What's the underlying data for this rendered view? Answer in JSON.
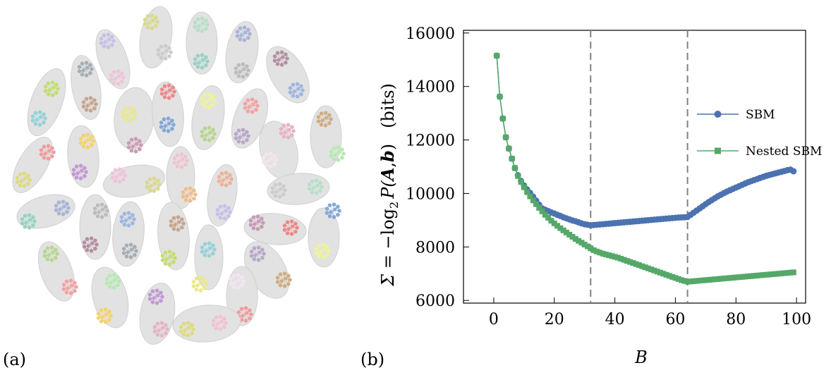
{
  "panel_labels": {
    "a": "(a)",
    "b": "(b)"
  },
  "network": {
    "group_fill": "#e2e2e2",
    "group_stroke": "#d0d0d0",
    "palette": [
      "#c7c0e6",
      "#f0c4d8",
      "#d9d98c",
      "#cccccc",
      "#b6e0c8",
      "#96d2c4",
      "#a8b4d8",
      "#bcbcbc",
      "#b58fa3",
      "#9fb7dc",
      "#a6adb5",
      "#c7a58e",
      "#c4dd70",
      "#96d1d8",
      "#e9e98a",
      "#c99bb5",
      "#ec8a8a",
      "#85a8d8",
      "#eff29a",
      "#b6d690",
      "#f2a3a3",
      "#b8a8c8",
      "#cfae84",
      "#b5eab0",
      "#f5d36a",
      "#c29ad3",
      "#e6b3c6",
      "#f3e5f0",
      "#ef9d9d",
      "#dcdb80",
      "#f2c3cf",
      "#f2bc8a",
      "#ecb29a"
    ],
    "group_count": 33,
    "cluster_count": 66
  },
  "chart_data": {
    "type": "line",
    "title": "",
    "xlabel": "B",
    "ylabel_sigma": "Σ = −",
    "ylabel_log": "log",
    "ylabel_sub": "2",
    "ylabel_P": "P(",
    "ylabel_A": "A",
    "ylabel_comma": ",",
    "ylabel_b": "b",
    "ylabel_close": ")",
    "ylabel_unit": "(bits)",
    "xlim": [
      -10,
      103
    ],
    "ylim": [
      5900,
      16100
    ],
    "xticks": [
      0,
      20,
      40,
      60,
      80,
      100
    ],
    "yticks": [
      6000,
      8000,
      10000,
      12000,
      14000,
      16000
    ],
    "xtick_labels": [
      "0",
      "20",
      "40",
      "60",
      "80",
      "100"
    ],
    "ytick_labels": [
      "6000",
      "8000",
      "10000",
      "12000",
      "14000",
      "16000"
    ],
    "vlines": [
      32,
      64
    ],
    "legend": {
      "position": "right",
      "entries": [
        "SBM",
        "Nested SBM"
      ]
    },
    "series": [
      {
        "name": "SBM",
        "color": "#4c72b0",
        "marker": "circle",
        "x": [
          1,
          2,
          3,
          4,
          5,
          6,
          7,
          8,
          9,
          10,
          11,
          12,
          13,
          14,
          15,
          16,
          17,
          18,
          19,
          20,
          21,
          22,
          23,
          24,
          25,
          26,
          27,
          28,
          29,
          30,
          31,
          32,
          33,
          34,
          35,
          36,
          37,
          38,
          39,
          40,
          41,
          42,
          43,
          44,
          45,
          46,
          47,
          48,
          49,
          50,
          51,
          52,
          53,
          54,
          55,
          56,
          57,
          58,
          59,
          60,
          61,
          62,
          63,
          64,
          65,
          66,
          67,
          68,
          69,
          70,
          71,
          72,
          73,
          74,
          75,
          76,
          77,
          78,
          79,
          80,
          81,
          82,
          83,
          84,
          85,
          86,
          87,
          88,
          89,
          90,
          91,
          92,
          93,
          94,
          95,
          96,
          97,
          98,
          99
        ],
        "y": [
          15150,
          13620,
          12800,
          12100,
          11680,
          11300,
          10950,
          10680,
          10470,
          10300,
          10150,
          10020,
          9880,
          9730,
          9580,
          9440,
          9390,
          9340,
          9290,
          9250,
          9200,
          9160,
          9110,
          9070,
          9030,
          8990,
          8960,
          8920,
          8880,
          8850,
          8830,
          8810,
          8820,
          8830,
          8840,
          8850,
          8860,
          8870,
          8880,
          8890,
          8900,
          8910,
          8920,
          8930,
          8940,
          8950,
          8960,
          8970,
          8980,
          8990,
          9000,
          9010,
          9020,
          9030,
          9040,
          9050,
          9060,
          9070,
          9080,
          9090,
          9100,
          9105,
          9110,
          9120,
          9200,
          9280,
          9360,
          9440,
          9520,
          9600,
          9680,
          9750,
          9820,
          9890,
          9950,
          10010,
          10070,
          10120,
          10170,
          10220,
          10270,
          10320,
          10370,
          10420,
          10460,
          10500,
          10540,
          10580,
          10620,
          10660,
          10690,
          10720,
          10750,
          10780,
          10810,
          10840,
          10870,
          10890,
          10830
        ]
      },
      {
        "name": "Nested SBM",
        "color": "#55a868",
        "marker": "square",
        "x": [
          1,
          2,
          3,
          4,
          5,
          6,
          7,
          8,
          9,
          10,
          11,
          12,
          13,
          14,
          15,
          16,
          17,
          18,
          19,
          20,
          21,
          22,
          23,
          24,
          25,
          26,
          27,
          28,
          29,
          30,
          31,
          32,
          33,
          34,
          35,
          36,
          37,
          38,
          39,
          40,
          41,
          42,
          43,
          44,
          45,
          46,
          47,
          48,
          49,
          50,
          51,
          52,
          53,
          54,
          55,
          56,
          57,
          58,
          59,
          60,
          61,
          62,
          63,
          64,
          65,
          66,
          67,
          68,
          69,
          70,
          71,
          72,
          73,
          74,
          75,
          76,
          77,
          78,
          79,
          80,
          81,
          82,
          83,
          84,
          85,
          86,
          87,
          88,
          89,
          90,
          91,
          92,
          93,
          94,
          95,
          96,
          97,
          98,
          99
        ],
        "y": [
          15150,
          13620,
          12800,
          12100,
          11680,
          11300,
          10950,
          10650,
          10430,
          10230,
          10050,
          9890,
          9740,
          9600,
          9460,
          9330,
          9200,
          9090,
          8980,
          8880,
          8790,
          8700,
          8620,
          8540,
          8460,
          8380,
          8300,
          8230,
          8160,
          8090,
          8020,
          7950,
          7880,
          7830,
          7790,
          7750,
          7720,
          7690,
          7660,
          7630,
          7600,
          7560,
          7520,
          7480,
          7440,
          7400,
          7360,
          7320,
          7280,
          7240,
          7200,
          7160,
          7120,
          7080,
          7040,
          7000,
          6960,
          6920,
          6880,
          6840,
          6800,
          6760,
          6730,
          6700,
          6710,
          6720,
          6730,
          6740,
          6750,
          6760,
          6770,
          6780,
          6790,
          6800,
          6810,
          6820,
          6830,
          6840,
          6850,
          6860,
          6870,
          6880,
          6890,
          6900,
          6910,
          6920,
          6930,
          6940,
          6950,
          6960,
          6970,
          6980,
          6990,
          7000,
          7010,
          7020,
          7030,
          7040,
          7050
        ]
      }
    ]
  }
}
